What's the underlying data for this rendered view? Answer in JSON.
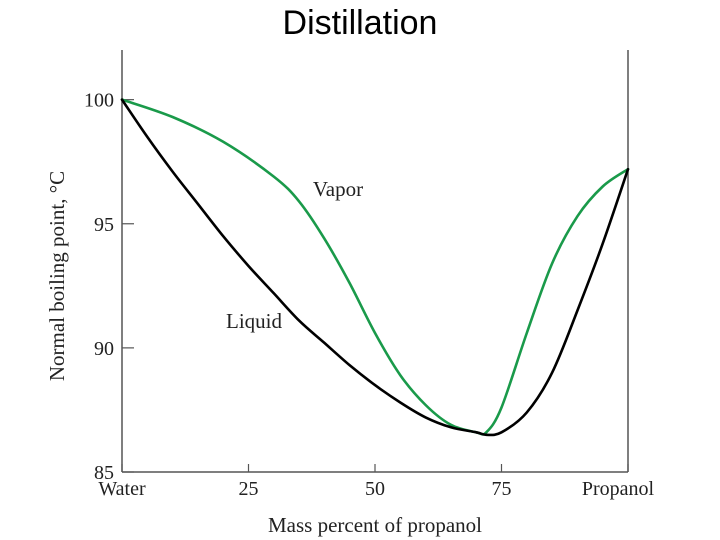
{
  "slide": {
    "title": "Distillation"
  },
  "chart_data": {
    "type": "line",
    "title": "Distillation",
    "xlabel": "Mass percent of propanol",
    "ylabel": "Normal boiling point, °C",
    "xlim": [
      0,
      100
    ],
    "ylim": [
      85,
      102
    ],
    "x_ticks": [
      {
        "value": 0,
        "label": "Water"
      },
      {
        "value": 25,
        "label": "25"
      },
      {
        "value": 50,
        "label": "50"
      },
      {
        "value": 75,
        "label": "75"
      },
      {
        "value": 100,
        "label": "Propanol"
      }
    ],
    "y_ticks": [
      {
        "value": 85,
        "label": "85"
      },
      {
        "value": 90,
        "label": "90"
      },
      {
        "value": 95,
        "label": "95"
      },
      {
        "value": 100,
        "label": "100"
      }
    ],
    "grid": false,
    "series": [
      {
        "name": "Vapor",
        "color": "#1a9a4a",
        "x": [
          0,
          10,
          20,
          30,
          35,
          40,
          45,
          50,
          55,
          60,
          65,
          70,
          72,
          75,
          80,
          85,
          90,
          95,
          100
        ],
        "y": [
          100,
          99.3,
          98.3,
          96.9,
          95.9,
          94.4,
          92.6,
          90.6,
          88.9,
          87.7,
          86.9,
          86.6,
          86.6,
          87.6,
          90.6,
          93.4,
          95.3,
          96.5,
          97.2
        ]
      },
      {
        "name": "Liquid",
        "color": "#000000",
        "x": [
          0,
          5,
          10,
          15,
          20,
          25,
          30,
          35,
          40,
          45,
          50,
          55,
          60,
          65,
          70,
          72,
          75,
          80,
          85,
          90,
          95,
          100
        ],
        "y": [
          100,
          98.5,
          97.1,
          95.8,
          94.5,
          93.3,
          92.2,
          91.1,
          90.2,
          89.3,
          88.5,
          87.8,
          87.2,
          86.8,
          86.6,
          86.5,
          86.6,
          87.4,
          89.0,
          91.5,
          94.2,
          97.2
        ]
      }
    ]
  }
}
